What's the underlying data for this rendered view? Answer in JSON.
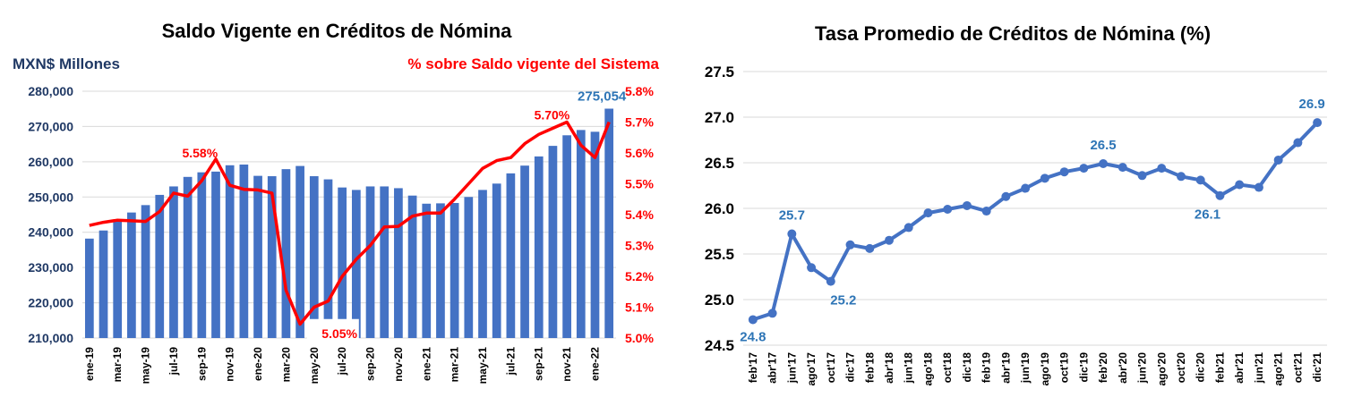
{
  "chart_data": [
    {
      "type": "bar+line",
      "title": "Saldo Vigente en Créditos de Nómina",
      "ylabel_left": "MXN$ Millones",
      "ylabel_right": "% sobre Saldo vigente del Sistema",
      "ylim_left": [
        210000,
        280000
      ],
      "yticks_left": [
        "210,000",
        "220,000",
        "230,000",
        "240,000",
        "250,000",
        "260,000",
        "270,000",
        "280,000"
      ],
      "ylim_right": [
        5.0,
        5.8
      ],
      "yticks_right": [
        "5.0%",
        "5.1%",
        "5.2%",
        "5.3%",
        "5.4%",
        "5.5%",
        "5.6%",
        "5.7%",
        "5.8%"
      ],
      "x_tick_labels": [
        "ene-19",
        "mar-19",
        "may-19",
        "jul-19",
        "sep-19",
        "nov-19",
        "ene-20",
        "mar-20",
        "may-20",
        "jul-20",
        "sep-20",
        "nov-20",
        "ene-21",
        "mar-21",
        "may-21",
        "jul-21",
        "sep-21",
        "nov-21",
        "ene-22"
      ],
      "bar_series": {
        "name": "Saldo vigente",
        "color": "#4472c4",
        "values": [
          238200,
          240500,
          243500,
          245600,
          247700,
          250600,
          253000,
          255700,
          257000,
          257200,
          259000,
          259200,
          256000,
          255900,
          257900,
          258800,
          255900,
          255000,
          252700,
          252000,
          253000,
          253000,
          252500,
          250400,
          248100,
          248200,
          248300,
          250000,
          252000,
          253800,
          256700,
          258900,
          261500,
          264500,
          267500,
          269000,
          268500,
          275054
        ]
      },
      "line_series": {
        "name": "% sobre Saldo vigente del Sistema",
        "color": "#ff0000",
        "values": [
          5.365,
          5.375,
          5.382,
          5.38,
          5.378,
          5.41,
          5.47,
          5.46,
          5.51,
          5.58,
          5.495,
          5.482,
          5.48,
          5.47,
          5.155,
          5.045,
          5.1,
          5.12,
          5.2,
          5.255,
          5.3,
          5.36,
          5.362,
          5.395,
          5.405,
          5.405,
          5.45,
          5.5,
          5.55,
          5.575,
          5.585,
          5.63,
          5.66,
          5.68,
          5.7,
          5.625,
          5.585,
          5.7
        ]
      },
      "annotations": [
        {
          "text": "275,054",
          "color": "#2e75b6"
        },
        {
          "text": "5.58%",
          "color": "#ff0000"
        },
        {
          "text": "5.05%",
          "color": "#ff0000"
        },
        {
          "text": "5.70%",
          "color": "#ff0000"
        }
      ],
      "grid": true
    },
    {
      "type": "line",
      "title": "Tasa Promedio de  Créditos de Nómina (%)",
      "ylim": [
        24.5,
        27.5
      ],
      "yticks": [
        "24.5",
        "25.0",
        "25.5",
        "26.0",
        "26.5",
        "27.0",
        "27.5"
      ],
      "categories": [
        "feb'17",
        "abr'17",
        "jun'17",
        "ago'17",
        "oct'17",
        "dic'17",
        "feb'18",
        "abr'18",
        "jun'18",
        "ago'18",
        "oct'18",
        "dic'18",
        "feb'19",
        "abr'19",
        "jun'19",
        "ago'19",
        "oct'19",
        "dic'19",
        "feb'20",
        "abr'20",
        "jun'20",
        "ago'20",
        "oct'20",
        "dic'20",
        "feb'21",
        "abr'21",
        "jun'21",
        "ago'21",
        "oct'21",
        "dic'21"
      ],
      "series": [
        {
          "color": "#4472c4",
          "values": [
            24.78,
            24.85,
            25.72,
            25.35,
            25.2,
            25.6,
            25.56,
            25.65,
            25.79,
            25.95,
            25.99,
            26.03,
            25.97,
            26.13,
            26.22,
            26.33,
            26.4,
            26.44,
            26.49,
            26.45,
            26.36,
            26.44,
            26.35,
            26.31,
            26.14,
            26.26,
            26.23,
            26.53,
            26.72,
            26.94
          ]
        }
      ],
      "annotations": [
        {
          "text": "24.8",
          "color": "#2e75b6"
        },
        {
          "text": "25.7",
          "color": "#2e75b6"
        },
        {
          "text": "25.2",
          "color": "#2e75b6"
        },
        {
          "text": "26.5",
          "color": "#2e75b6"
        },
        {
          "text": "26.1",
          "color": "#2e75b6"
        },
        {
          "text": "26.9",
          "color": "#2e75b6"
        }
      ],
      "grid": true
    }
  ]
}
